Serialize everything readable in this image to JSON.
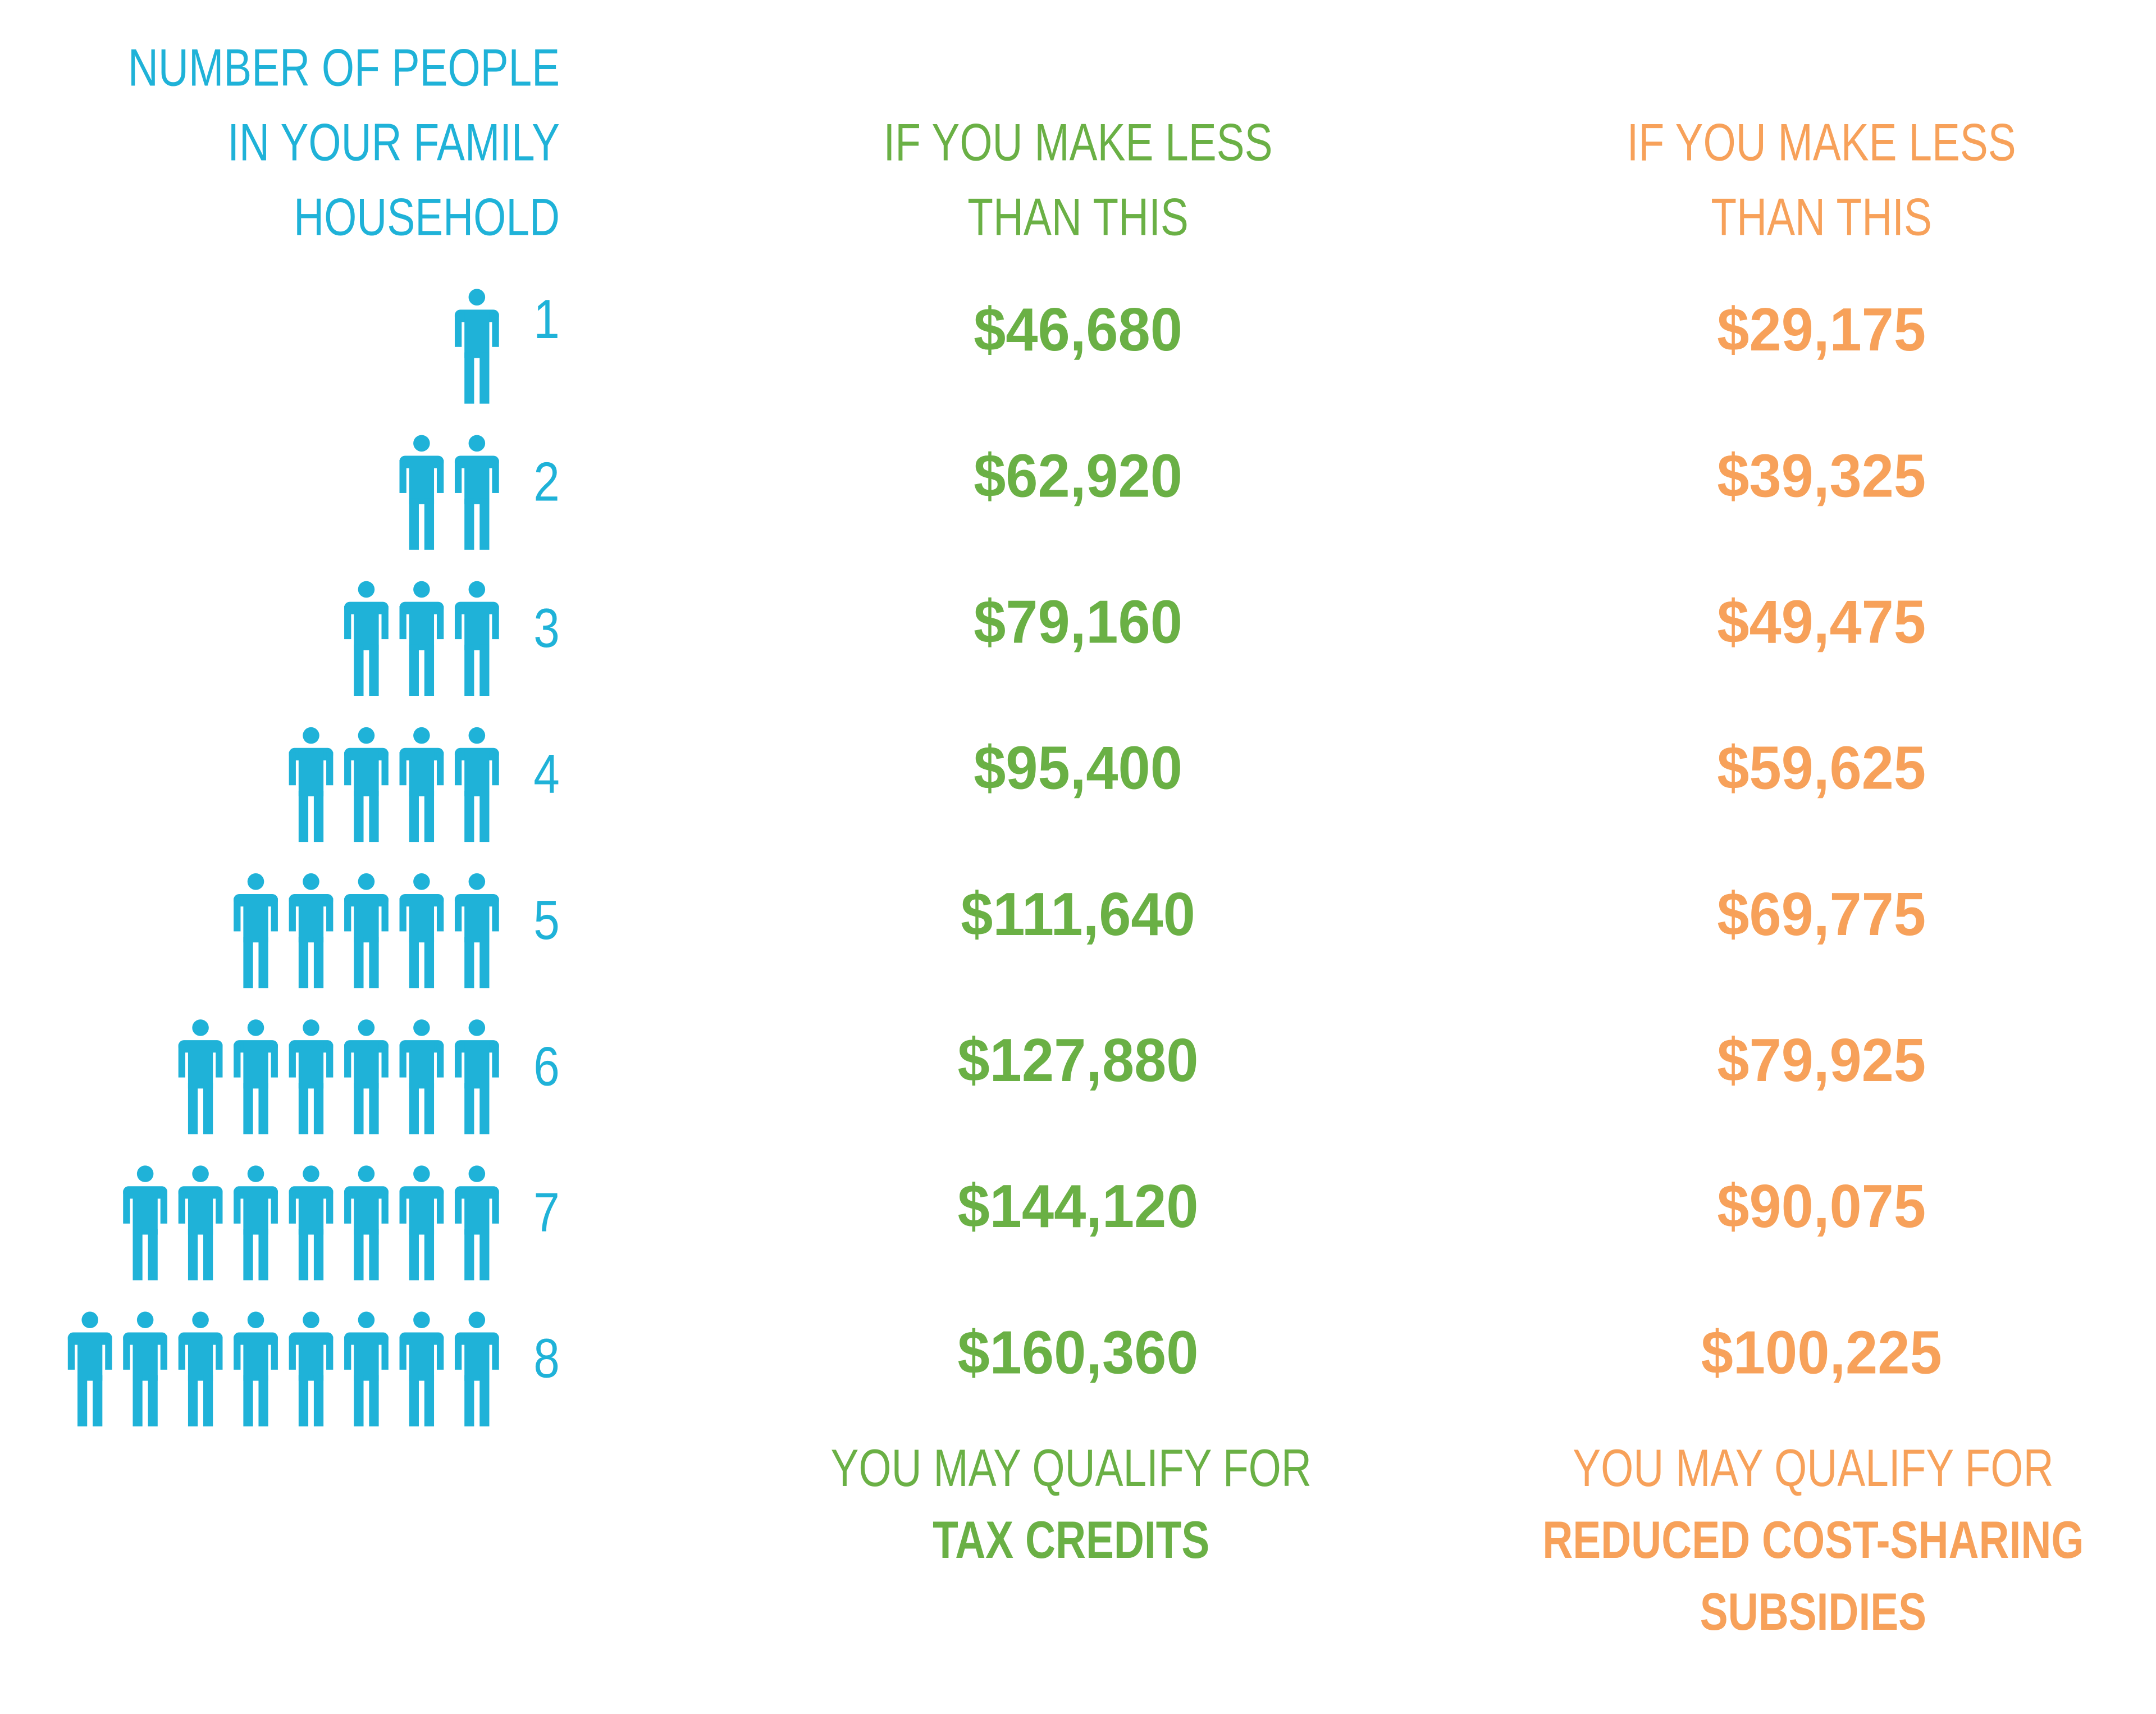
{
  "header": {
    "people_label": [
      "NUMBER OF PEOPLE",
      "IN YOUR FAMILY",
      "HOUSEHOLD"
    ],
    "tax_credit_label": [
      "IF YOU MAKE LESS",
      "THAN THIS"
    ],
    "cost_sharing_label": [
      "IF YOU MAKE LESS",
      "THAN THIS"
    ]
  },
  "rows": [
    {
      "people": 1,
      "tax_credit_limit": "$46,680",
      "cost_sharing_limit": "$29,175"
    },
    {
      "people": 2,
      "tax_credit_limit": "$62,920",
      "cost_sharing_limit": "$39,325"
    },
    {
      "people": 3,
      "tax_credit_limit": "$79,160",
      "cost_sharing_limit": "$49,475"
    },
    {
      "people": 4,
      "tax_credit_limit": "$95,400",
      "cost_sharing_limit": "$59,625"
    },
    {
      "people": 5,
      "tax_credit_limit": "$111,640",
      "cost_sharing_limit": "$69,775"
    },
    {
      "people": 6,
      "tax_credit_limit": "$127,880",
      "cost_sharing_limit": "$79,925"
    },
    {
      "people": 7,
      "tax_credit_limit": "$144,120",
      "cost_sharing_limit": "$90,075"
    },
    {
      "people": 8,
      "tax_credit_limit": "$160,360",
      "cost_sharing_limit": "$100,225"
    }
  ],
  "footer": {
    "tax_credit_note": [
      "YOU MAY QUALIFY FOR",
      "TAX CREDITS"
    ],
    "cost_sharing_note": [
      "YOU MAY QUALIFY FOR",
      "REDUCED COST-SHARING",
      "SUBSIDIES"
    ]
  }
}
